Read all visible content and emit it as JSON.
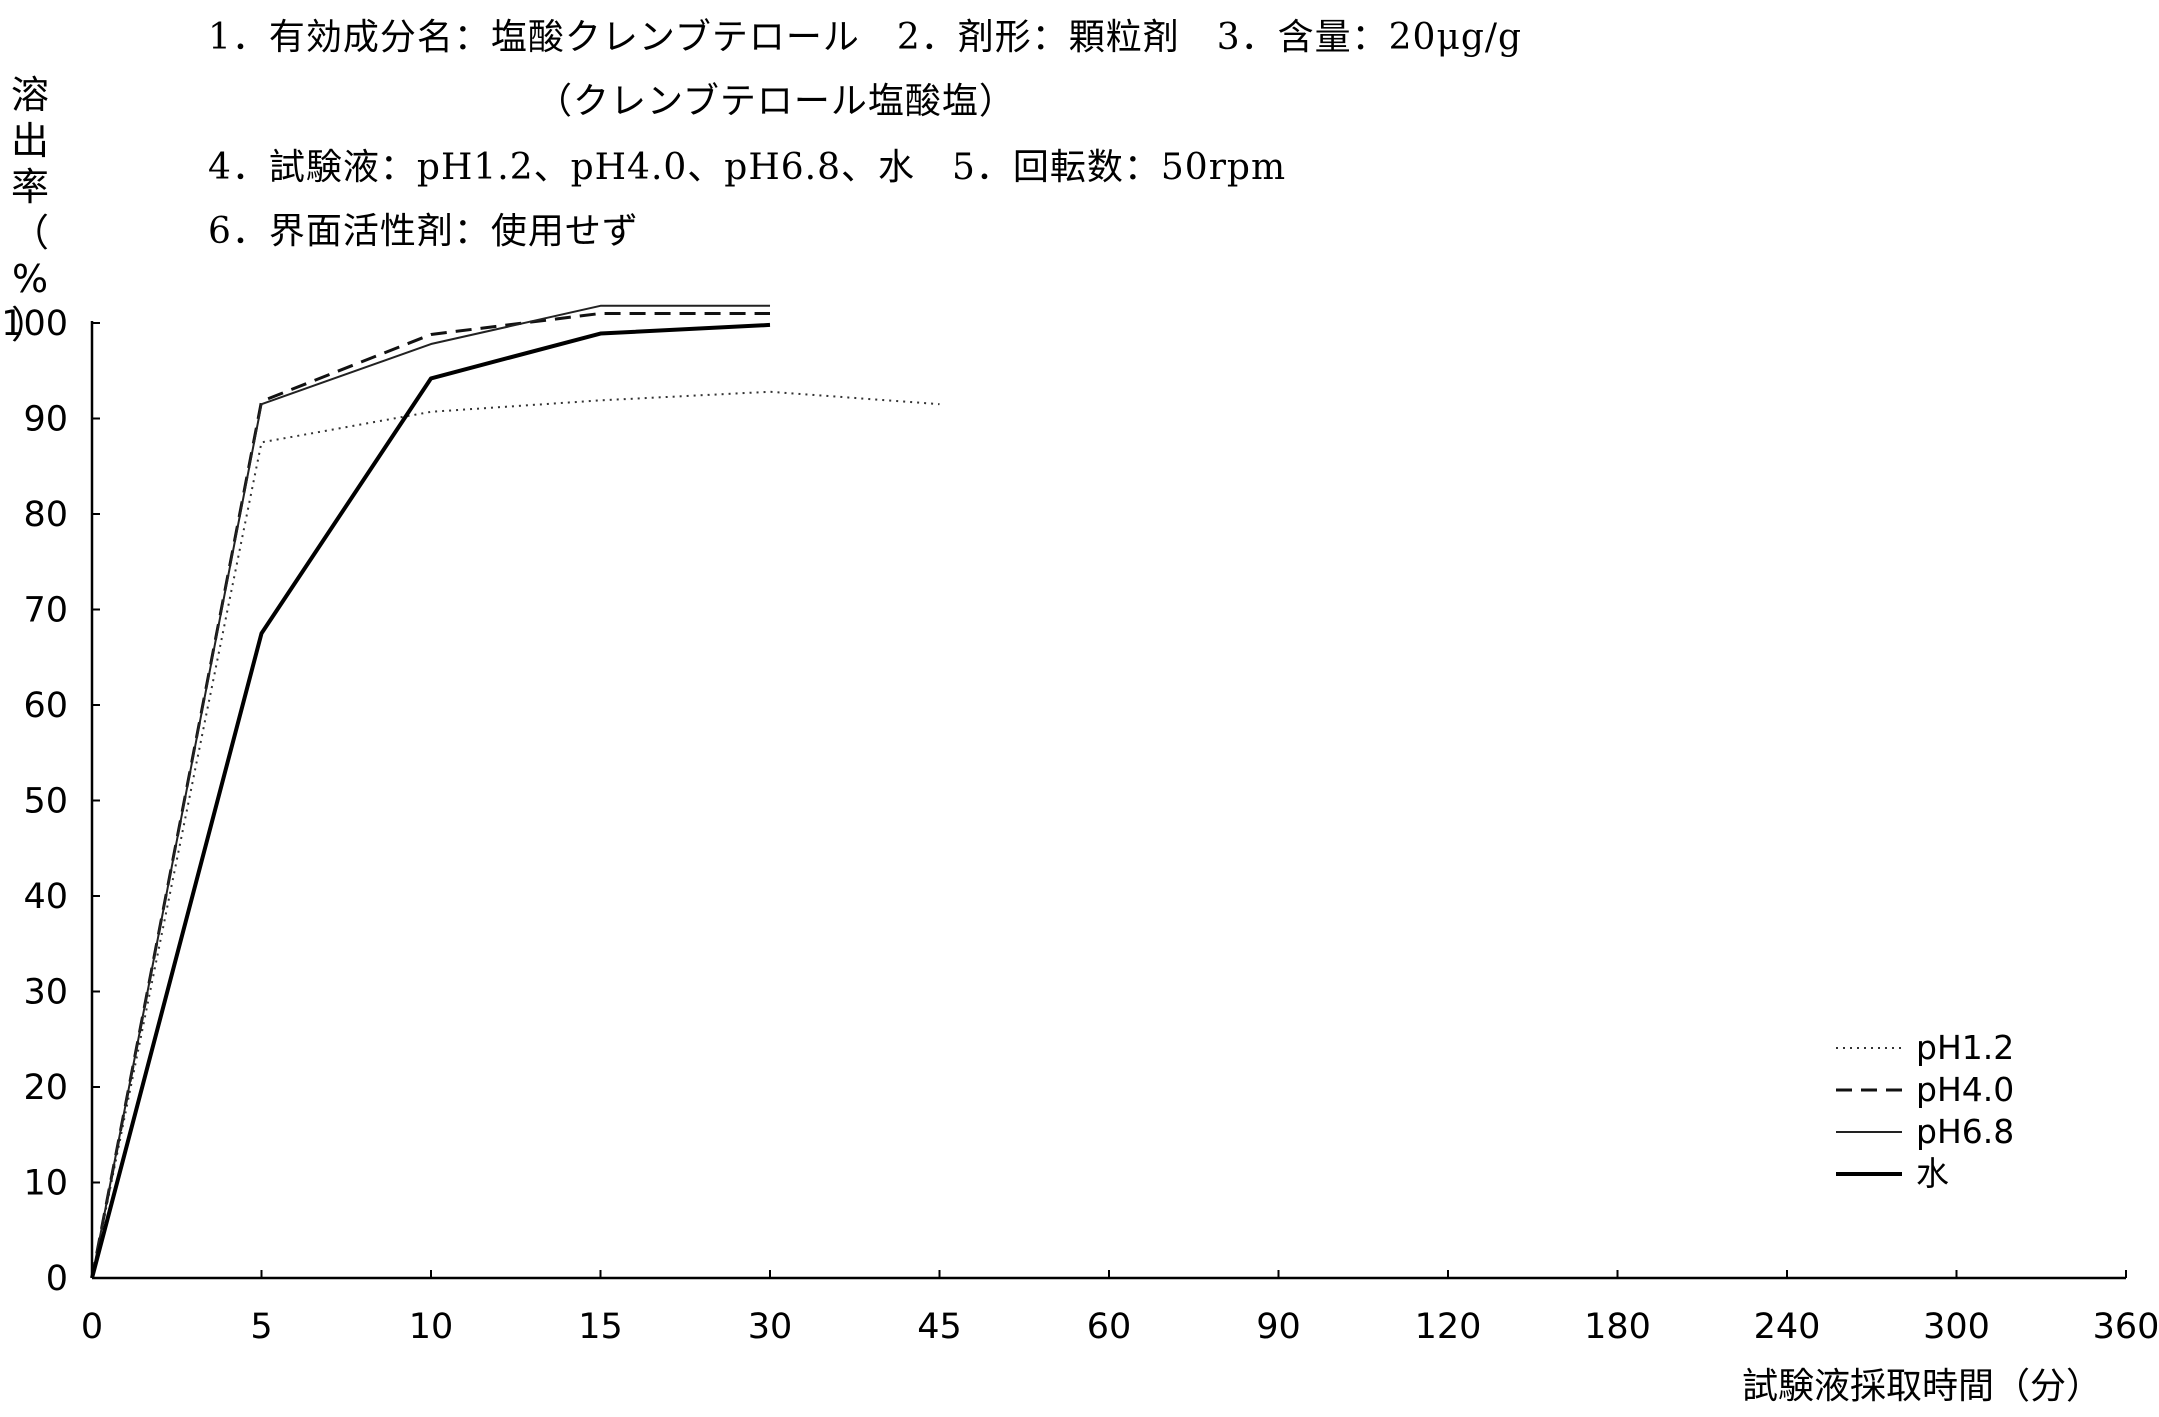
{
  "header": {
    "line1": "1．有効成分名：塩酸クレンブテロール　2．剤形：顆粒剤　3．含量：20μg/g",
    "line2": "（クレンブテロール塩酸塩）",
    "line3": "4．試験液：pH1.2、pH4.0、pH6.8、水　5．回転数：50rpm",
    "line4": "6．界面活性剤：使用せず"
  },
  "chart_data": {
    "type": "line",
    "ylabel": "溶出率（%）",
    "xlabel": "試験液採取時間（分）",
    "x_ticks": [
      "0",
      "5",
      "10",
      "15",
      "30",
      "45",
      "60",
      "90",
      "120",
      "180",
      "240",
      "300",
      "360"
    ],
    "y_ticks": [
      "0",
      "10",
      "20",
      "30",
      "40",
      "50",
      "60",
      "70",
      "80",
      "90",
      "100"
    ],
    "ylim": [
      0,
      100
    ],
    "grid": false,
    "legend_position": "bottom-right",
    "series": [
      {
        "name": "pH1.2",
        "style": "dotted",
        "color": "#333333",
        "x": [
          "0",
          "5",
          "10",
          "15",
          "30",
          "45"
        ],
        "y": [
          0,
          87.5,
          90.7,
          91.9,
          92.8,
          91.5
        ]
      },
      {
        "name": "pH4.0",
        "style": "dashed",
        "color": "#111111",
        "x": [
          "0",
          "5",
          "10",
          "15",
          "30"
        ],
        "y": [
          0,
          91.8,
          98.8,
          101.0,
          101.0
        ]
      },
      {
        "name": "pH6.8",
        "style": "thin-solid",
        "color": "#222222",
        "x": [
          "0",
          "5",
          "10",
          "15",
          "30"
        ],
        "y": [
          0,
          91.5,
          97.8,
          101.8,
          101.8
        ]
      },
      {
        "name": "水",
        "style": "thick-solid",
        "color": "#000000",
        "x": [
          "0",
          "5",
          "10",
          "15",
          "30"
        ],
        "y": [
          0,
          67.5,
          94.2,
          98.9,
          99.8
        ]
      }
    ]
  }
}
